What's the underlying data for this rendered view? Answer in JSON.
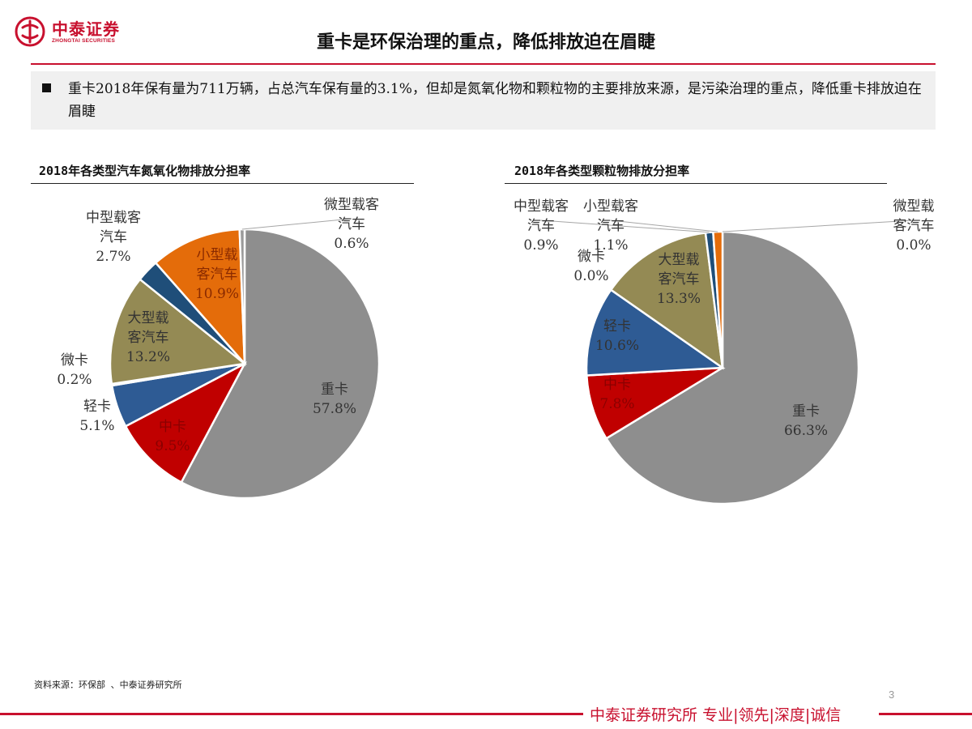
{
  "header": {
    "logo_cn": "中泰证券",
    "logo_en": "ZHONGTAI SECURITIES",
    "title": "重卡是环保治理的重点，降低排放迫在眉睫"
  },
  "summary": {
    "text": "重卡2018年保有量为711万辆，占总汽车保有量的3.1%，但却是氮氧化物和颗粒物的主要排放来源，是污染治理的重点，降低重卡排放迫在眉睫"
  },
  "colors": {
    "accent_red": "#c8102e",
    "heavy_truck": "#8e8e8e",
    "medium_truck": "#c00000",
    "light_truck": "#2e5b94",
    "mini_truck": "#8f8b5a",
    "large_bus": "#948a54",
    "medium_bus": "#1f4e79",
    "small_bus": "#e46c0a",
    "mini_bus": "#8e8e8e"
  },
  "chart_data": [
    {
      "type": "pie",
      "title": "2018年各类型汽车氮氧化物排放分担率",
      "slices": [
        {
          "label_lines": [
            "重卡"
          ],
          "value": 57.8,
          "value_label": "57.8%",
          "color": "#8e8e8e"
        },
        {
          "label_lines": [
            "中卡"
          ],
          "value": 9.5,
          "value_label": "9.5%",
          "color": "#c00000"
        },
        {
          "label_lines": [
            "轻卡"
          ],
          "value": 5.1,
          "value_label": "5.1%",
          "color": "#2e5b94"
        },
        {
          "label_lines": [
            "微卡"
          ],
          "value": 0.2,
          "value_label": "0.2%",
          "color": "#6f6f6f"
        },
        {
          "label_lines": [
            "大型载",
            "客汽车"
          ],
          "value": 13.2,
          "value_label": "13.2%",
          "color": "#948a54"
        },
        {
          "label_lines": [
            "中型载客",
            "汽车"
          ],
          "value": 2.7,
          "value_label": "2.7%",
          "color": "#1f4e79"
        },
        {
          "label_lines": [
            "小型载",
            "客汽车"
          ],
          "value": 10.9,
          "value_label": "10.9%",
          "color": "#e46c0a"
        },
        {
          "label_lines": [
            "微型载客",
            "汽车"
          ],
          "value": 0.6,
          "value_label": "0.6%",
          "color": "#9a9a9a"
        }
      ]
    },
    {
      "type": "pie",
      "title": "2018年各类型颗粒物排放分担率",
      "slices": [
        {
          "label_lines": [
            "重卡"
          ],
          "value": 66.3,
          "value_label": "66.3%",
          "color": "#8e8e8e"
        },
        {
          "label_lines": [
            "中卡"
          ],
          "value": 7.8,
          "value_label": "7.8%",
          "color": "#c00000"
        },
        {
          "label_lines": [
            "轻卡"
          ],
          "value": 10.6,
          "value_label": "10.6%",
          "color": "#2e5b94"
        },
        {
          "label_lines": [
            "微卡"
          ],
          "value": 0.0,
          "value_label": "0.0%",
          "color": "#6f6f6f"
        },
        {
          "label_lines": [
            "大型载",
            "客汽车"
          ],
          "value": 13.3,
          "value_label": "13.3%",
          "color": "#948a54"
        },
        {
          "label_lines": [
            "中型载客",
            "汽车"
          ],
          "value": 0.9,
          "value_label": "0.9%",
          "color": "#1f4e79"
        },
        {
          "label_lines": [
            "小型载客",
            "汽车"
          ],
          "value": 1.1,
          "value_label": "1.1%",
          "color": "#e46c0a"
        },
        {
          "label_lines": [
            "微型载",
            "客汽车"
          ],
          "value": 0.0,
          "value_label": "0.0%",
          "color": "#9a9a9a"
        }
      ]
    }
  ],
  "footer": {
    "source": "资料来源：环保部 、中泰证券研究所",
    "page_number": "3",
    "tagline_org": "中泰证券研究所",
    "tagline_values": "专业|领先|深度|诚信"
  }
}
